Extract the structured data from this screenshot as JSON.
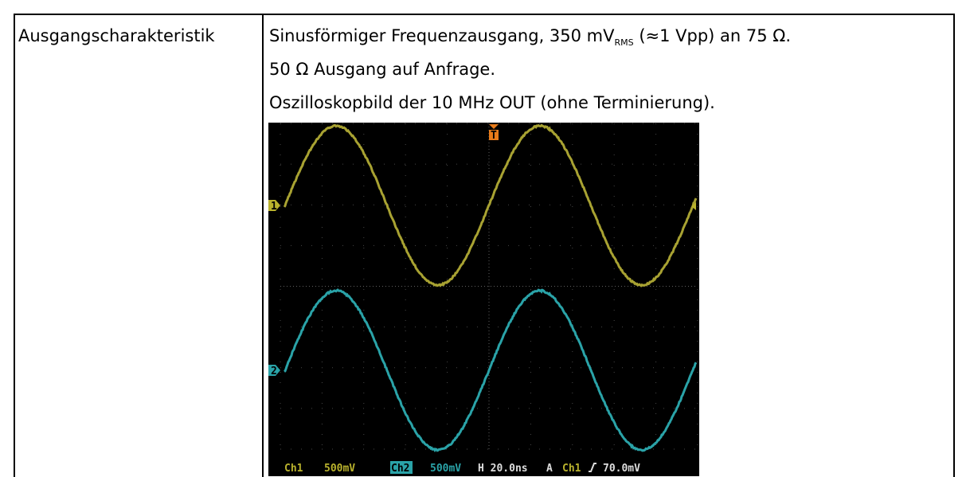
{
  "table": {
    "rows": [
      {
        "label": "Ausgangscharakteristik",
        "lines": [
          {
            "text": "Sinusförmiger Frequenzausgang, 350 mV",
            "sub": "RMS",
            "after": " (≈1 Vpp) an 75 Ω."
          },
          {
            "text": "50 Ω Ausgang auf Anfrage."
          },
          {
            "text": "Oszilloskopbild der 10 MHz OUT (ohne Terminierung)."
          }
        ],
        "scope": {
          "ch1_marker": "1",
          "ch2_marker": "2",
          "trigger_marker": "T",
          "status": {
            "ch1": "Ch1",
            "ch1_scale": "500mV",
            "ch2": "Ch2",
            "ch2_scale": "500mV",
            "horizontal": "H 20.0ns",
            "acq": "A",
            "trig_source": "Ch1",
            "trig_level": "70.0mV"
          }
        }
      }
    ]
  }
}
